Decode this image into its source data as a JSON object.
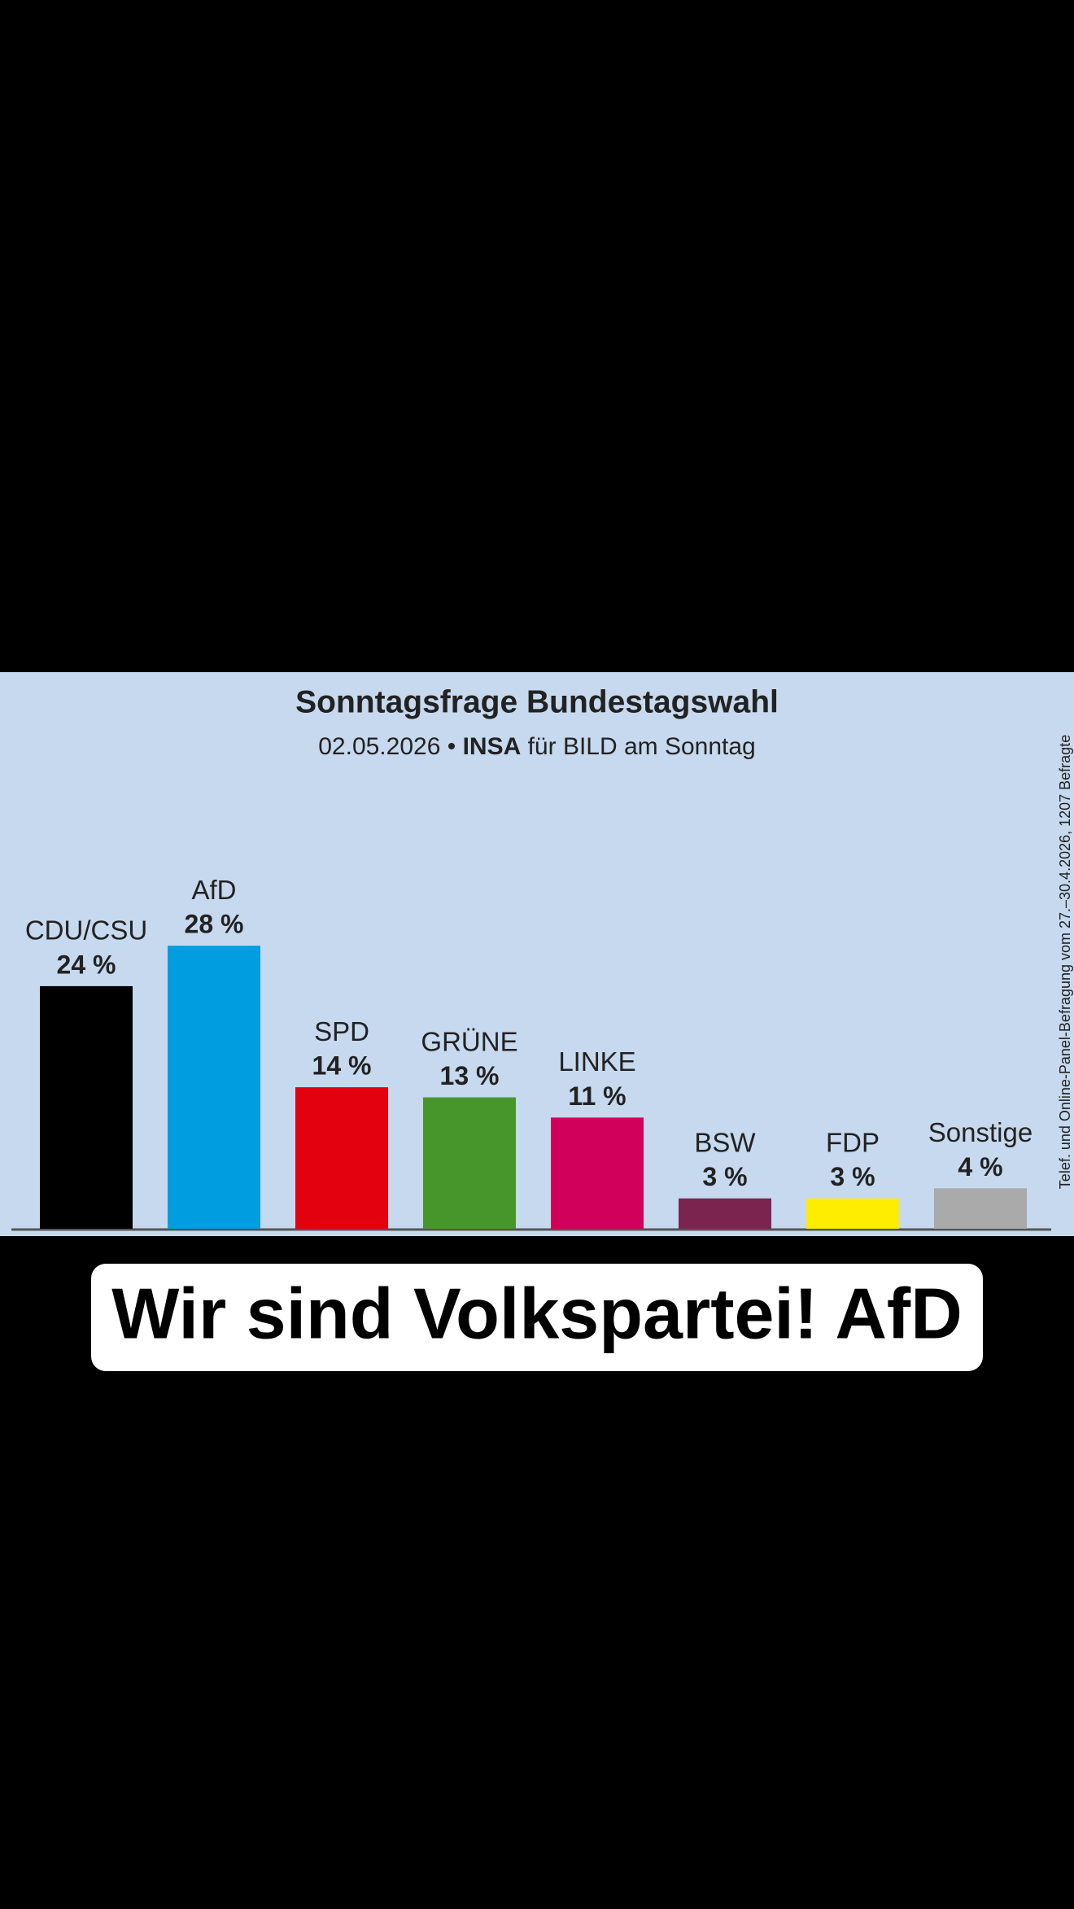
{
  "chart_data": {
    "type": "bar",
    "title": "Sonntagsfrage Bundestagswahl",
    "subtitle": [
      "02.05.2026 •",
      "INSA",
      "für BILD am Sonntag"
    ],
    "note": "Telef. und Online-Panel-Befragung vom 27.–30.4.2026, 1207 Befragte",
    "categories": [
      "CDU/CSU",
      "AfD",
      "SPD",
      "GRÜNE",
      "LINKE",
      "BSW",
      "FDP",
      "Sonstige"
    ],
    "values": [
      24,
      28,
      14,
      13,
      11,
      3,
      3,
      4
    ],
    "value_labels": [
      "24 %",
      "28 %",
      "14 %",
      "13 %",
      "11 %",
      "3 %",
      "3 %",
      "4 %"
    ],
    "colors": [
      "#000000",
      "#009ee0",
      "#e3000f",
      "#46962b",
      "#d1005a",
      "#7b2450",
      "#ffed00",
      "#aaaaaa"
    ]
  },
  "caption": "Wir sind Volkspartei! AfD"
}
